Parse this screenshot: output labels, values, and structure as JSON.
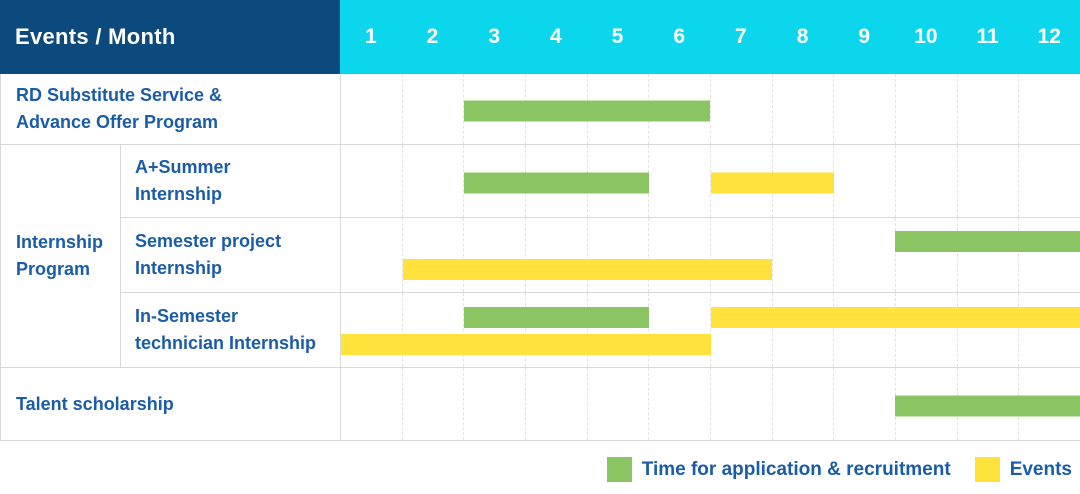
{
  "header": {
    "corner_label": "Events / Month",
    "months": [
      "1",
      "2",
      "3",
      "4",
      "5",
      "6",
      "7",
      "8",
      "9",
      "10",
      "11",
      "12"
    ]
  },
  "colors": {
    "navy": "#0C4A7D",
    "cyan": "#0BD6EC",
    "green": "#8BC563",
    "yellow": "#FFE23C",
    "label_text": "#1B5CA8",
    "grid_line": "#E2E2E2",
    "row_line": "#D9D9D9"
  },
  "legend": {
    "items": [
      {
        "color": "green",
        "label": "Time for application & recruitment"
      },
      {
        "color": "yellow",
        "label": "Events"
      }
    ]
  },
  "chart_data": {
    "type": "table",
    "chart_style": "gantt",
    "x_axis_label": "Month",
    "x_categories": [
      "1",
      "2",
      "3",
      "4",
      "5",
      "6",
      "7",
      "8",
      "9",
      "10",
      "11",
      "12"
    ],
    "x_range": [
      1,
      12
    ],
    "grid": true,
    "legend_position": "bottom-right",
    "legend_meaning": {
      "green": "Time for application & recruitment",
      "yellow": "Events"
    },
    "group_label_lines": {
      "Internship Program": [
        "Internship",
        "Program"
      ]
    },
    "rows": [
      {
        "label": "RD Substitute Service & Advance Offer Program",
        "label_lines": [
          "RD Substitute Service &",
          "Advance Offer Program"
        ],
        "group": "",
        "bars": [
          {
            "color": "green",
            "start_month": 3,
            "end_month": 6,
            "lane": "center"
          }
        ]
      },
      {
        "label": "A+Summer Internship",
        "label_lines": [
          "A+Summer",
          "Internship"
        ],
        "group": "Internship Program",
        "bars": [
          {
            "color": "green",
            "start_month": 3,
            "end_month": 5,
            "lane": "center"
          },
          {
            "color": "yellow",
            "start_month": 7,
            "end_month": 8,
            "lane": "center"
          }
        ]
      },
      {
        "label": "Semester project Internship",
        "label_lines": [
          "Semester project",
          "Internship"
        ],
        "group": "Internship Program",
        "bars": [
          {
            "color": "green",
            "start_month": 10,
            "end_month": 12,
            "lane": "top"
          },
          {
            "color": "yellow",
            "start_month": 2,
            "end_month": 7,
            "lane": "bottom"
          }
        ]
      },
      {
        "label": "In-Semester technician Internship",
        "label_lines": [
          "In-Semester",
          "technician Internship"
        ],
        "group": "Internship Program",
        "bars": [
          {
            "color": "green",
            "start_month": 3,
            "end_month": 5,
            "lane": "top"
          },
          {
            "color": "yellow",
            "start_month": 7,
            "end_month": 12,
            "lane": "top"
          },
          {
            "color": "yellow",
            "start_month": 1,
            "end_month": 6,
            "lane": "bottom"
          }
        ]
      },
      {
        "label": "Talent scholarship",
        "label_lines": [
          "Talent scholarship"
        ],
        "group": "",
        "bars": [
          {
            "color": "green",
            "start_month": 10,
            "end_month": 12,
            "lane": "center"
          }
        ]
      }
    ]
  }
}
